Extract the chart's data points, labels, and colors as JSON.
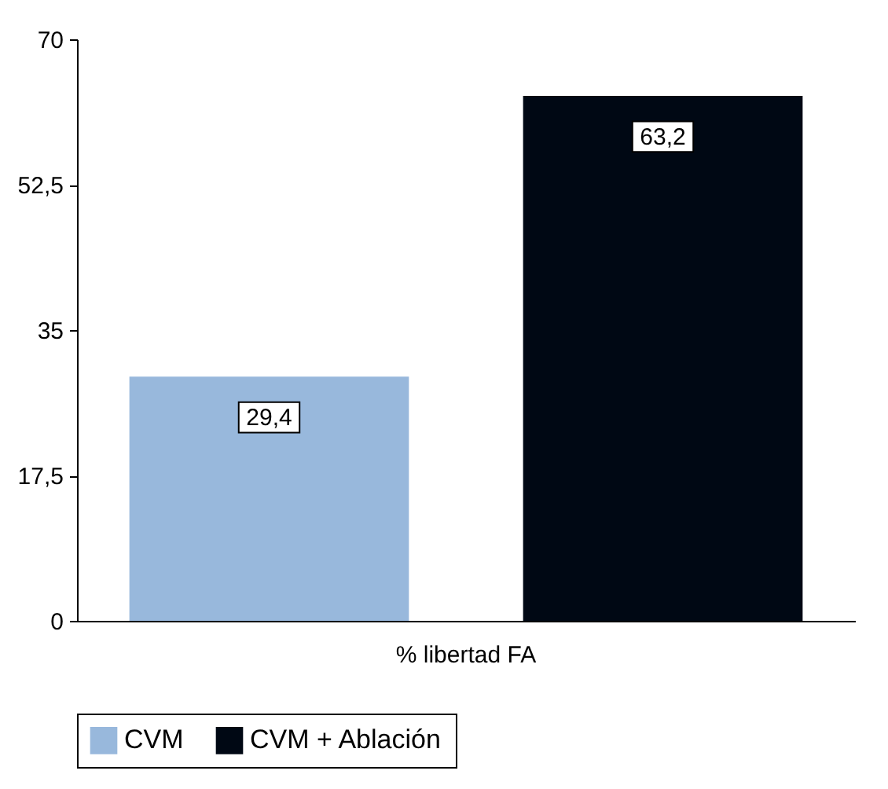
{
  "chart_data": {
    "type": "bar",
    "categories": [
      "% libertad FA"
    ],
    "series": [
      {
        "name": "CVM",
        "color": "#98b8dc",
        "values": [
          29.4
        ],
        "value_labels": [
          "29,4"
        ]
      },
      {
        "name": "CVM + Ablación",
        "color": "#000814",
        "values": [
          63.2
        ],
        "value_labels": [
          "63,2"
        ]
      }
    ],
    "ylim": [
      0,
      70
    ],
    "yticks": [
      0,
      {
        "value": 17.5,
        "label": "17,5"
      },
      35,
      {
        "value": 52.5,
        "label": "52,5"
      },
      70
    ],
    "grid": false,
    "legend": "bottom"
  }
}
